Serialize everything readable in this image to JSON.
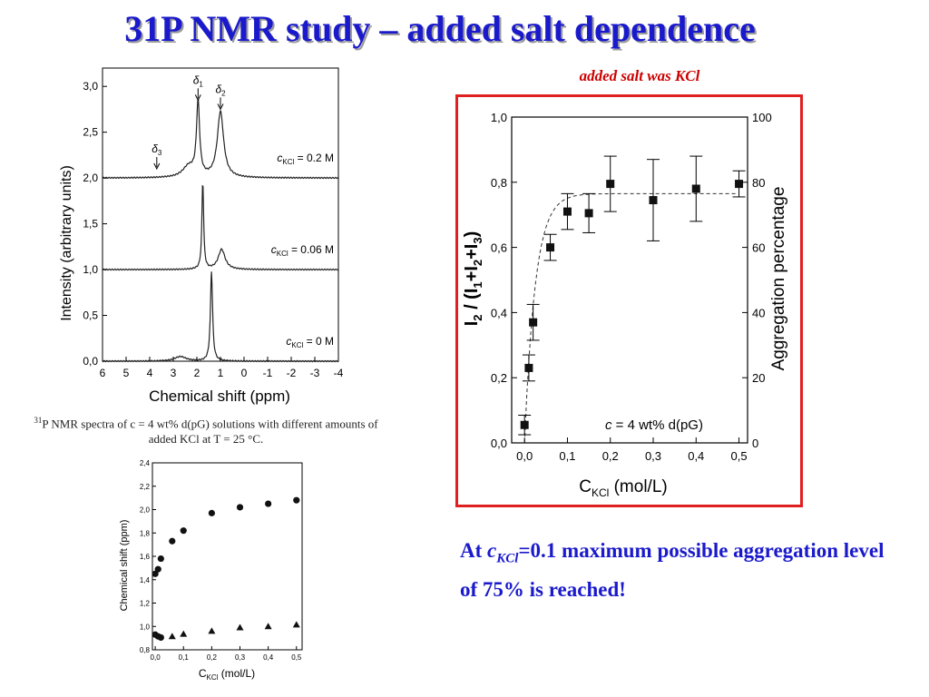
{
  "title": "31P NMR study – added salt dependence",
  "note": "added salt was KCl",
  "caption": {
    "sup": "31",
    "text": "P NMR spectra of c = 4 wt% d(pG) solutions with different amounts of added KCl at T = 25 °C."
  },
  "conclusion": {
    "prefix": "At ",
    "c": "c",
    "sub": "KCl",
    "rest": "=0.1 maximum possible aggregation level of 75% is reached!"
  },
  "colors": {
    "title": "#1a1acc",
    "note": "#cc0000",
    "box": "#e02020",
    "conclusion": "#1a1acc"
  },
  "chart_data": [
    {
      "type": "line",
      "xlabel": "Chemical shift (ppm)",
      "ylabel": "Intensity (arbitrary units)",
      "xlim": [
        6,
        -4
      ],
      "ylim": [
        0,
        3.2
      ],
      "x_ticks": [
        "6",
        "5",
        "4",
        "3",
        "2",
        "1",
        "0",
        "-1",
        "-2",
        "-3",
        "-4"
      ],
      "y_ticks": [
        "0,0",
        "0,5",
        "1,0",
        "1,5",
        "2,0",
        "2,5",
        "3,0"
      ],
      "peak_labels": [
        "δ1",
        "δ2",
        "δ3"
      ],
      "series": [
        {
          "name": "cKCl = 0.2 M",
          "label_c": "c",
          "label_sub": "KCl",
          "label_val": " = 0.2 M",
          "baseline": 2.0,
          "peaks": [
            {
              "x": 2.35,
              "h": 0.12,
              "w": 0.6
            },
            {
              "x": 1.95,
              "h": 0.8,
              "w": 0.16
            },
            {
              "x": 1.0,
              "h": 0.72,
              "w": 0.32
            }
          ]
        },
        {
          "name": "cKCl = 0.06 M",
          "label_c": "c",
          "label_sub": "KCl",
          "label_val": " = 0.06 M",
          "baseline": 1.0,
          "peaks": [
            {
              "x": 1.75,
              "h": 0.95,
              "w": 0.09
            },
            {
              "x": 0.95,
              "h": 0.22,
              "w": 0.35
            }
          ]
        },
        {
          "name": "cKCl = 0 M",
          "label_c": "c",
          "label_sub": "KCl",
          "label_val": " = 0 M",
          "baseline": 0.0,
          "peaks": [
            {
              "x": 2.7,
              "h": 0.05,
              "w": 0.6
            },
            {
              "x": 1.38,
              "h": 0.98,
              "w": 0.11
            }
          ]
        }
      ]
    },
    {
      "type": "scatter",
      "xlabel": "C",
      "xlabel_sub": "KCl",
      "xlabel_unit": "(mol/L)",
      "ylabel": "I2 / (I1+I2+I3)",
      "ylabel_parts": [
        "I",
        "2",
        " / (I",
        "1",
        "+I",
        "2",
        "+I",
        "3",
        ")"
      ],
      "y2label": "Aggregation percentage",
      "annotation": "c = 4 wt% d(pG)",
      "annotation_c": "c",
      "annotation_rest": " = 4 wt% d(pG)",
      "xlim": [
        -0.03,
        0.52
      ],
      "ylim": [
        0,
        1.0
      ],
      "y2lim": [
        0,
        100
      ],
      "x_ticks": [
        "0,0",
        "0,1",
        "0,2",
        "0,3",
        "0,4",
        "0,5"
      ],
      "y_ticks": [
        "0,0",
        "0,2",
        "0,4",
        "0,6",
        "0,8",
        "1,0"
      ],
      "y2_ticks": [
        "0",
        "20",
        "40",
        "60",
        "80",
        "100"
      ],
      "x": [
        0.0,
        0.01,
        0.02,
        0.06,
        0.1,
        0.15,
        0.2,
        0.3,
        0.4,
        0.5
      ],
      "y": [
        0.055,
        0.23,
        0.37,
        0.6,
        0.71,
        0.705,
        0.795,
        0.745,
        0.78,
        0.795
      ],
      "err": [
        0.03,
        0.04,
        0.055,
        0.04,
        0.055,
        0.06,
        0.085,
        0.125,
        0.1,
        0.04
      ],
      "fit": {
        "plateau": 0.765,
        "rate": 40
      }
    },
    {
      "type": "scatter",
      "xlabel": "C",
      "xlabel_sub": "KCl",
      "xlabel_unit": "(mol/L)",
      "ylabel": "Chemical shift  (ppm)",
      "xlim": [
        -0.01,
        0.52
      ],
      "ylim": [
        0.8,
        2.4
      ],
      "x_ticks": [
        "0,0",
        "0,1",
        "0,2",
        "0,3",
        "0,4",
        "0,5"
      ],
      "y_ticks": [
        "0,8",
        "1,0",
        "1,2",
        "1,4",
        "1,6",
        "1,8",
        "2,0",
        "2,2",
        "2,4"
      ],
      "series": [
        {
          "name": "δ1",
          "marker": "circle",
          "x": [
            0.0,
            0.01,
            0.02,
            0.06,
            0.1,
            0.2,
            0.3,
            0.4,
            0.5
          ],
          "y": [
            1.45,
            1.49,
            1.58,
            1.73,
            1.82,
            1.97,
            2.02,
            2.05,
            2.08
          ]
        },
        {
          "name": "δ2",
          "marker": "circle",
          "x": [
            0.0,
            0.01,
            0.02
          ],
          "y": [
            0.93,
            0.915,
            0.905
          ]
        },
        {
          "name": "δ2 ",
          "marker": "triangle",
          "x": [
            0.06,
            0.1,
            0.2,
            0.3,
            0.4,
            0.5
          ],
          "y": [
            0.915,
            0.935,
            0.96,
            0.99,
            1.0,
            1.015
          ]
        }
      ]
    }
  ]
}
